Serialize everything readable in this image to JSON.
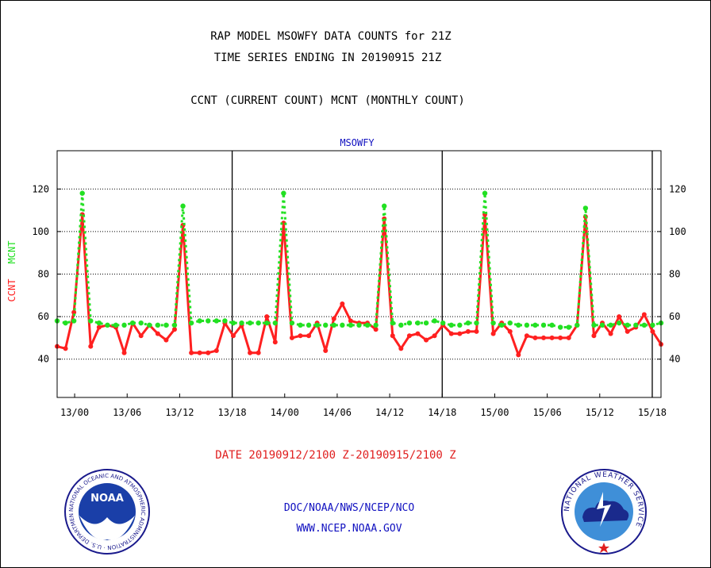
{
  "header": {
    "title_line1": "RAP MODEL MSOWFY DATA COUNTS for 21Z",
    "title_line2": "TIME SERIES ENDING IN 20190915 21Z",
    "subtitle": "CCNT (CURRENT COUNT) MCNT (MONTHLY COUNT)"
  },
  "footer": {
    "date_range": "DATE 20190912/2100 Z-20190915/2100 Z",
    "org": "DOC/NOAA/NWS/NCEP/NCO",
    "url": "WWW.NCEP.NOAA.GOV"
  },
  "logos": {
    "noaa": {
      "text": "NOAA",
      "ring_text": "NATIONAL OCEANIC AND ATMOSPHERIC ADMINISTRATION · U.S. DEPARTMENT OF COMMERCE"
    },
    "nws": {
      "ring_text": "NATIONAL WEATHER SERVICE"
    }
  },
  "colors": {
    "ccnt": "#ff2020",
    "mcnt": "#22e022",
    "panel_title": "#1010c0",
    "date_text": "#e02020",
    "footer_text": "#1010c0"
  },
  "chart_data": {
    "type": "line",
    "title": "MSOWFY",
    "ylabel_ccnt": "CCNT",
    "ylabel_mcnt": "MCNT",
    "x_range_hours": [
      -2,
      67
    ],
    "ylim": [
      22,
      138
    ],
    "y_ticks": [
      40,
      60,
      80,
      100,
      120
    ],
    "x_tick_labels": [
      {
        "hour": 0,
        "label": "13/00"
      },
      {
        "hour": 6,
        "label": "13/06"
      },
      {
        "hour": 12,
        "label": "13/12"
      },
      {
        "hour": 18,
        "label": "13/18"
      },
      {
        "hour": 24,
        "label": "14/00"
      },
      {
        "hour": 30,
        "label": "14/06"
      },
      {
        "hour": 36,
        "label": "14/12"
      },
      {
        "hour": 42,
        "label": "14/18"
      },
      {
        "hour": 48,
        "label": "15/00"
      },
      {
        "hour": 54,
        "label": "15/06"
      },
      {
        "hour": 60,
        "label": "15/12"
      },
      {
        "hour": 66,
        "label": "15/18"
      }
    ],
    "day_boundaries_hours": [
      18,
      42,
      66
    ],
    "grid": "horizontal dotted",
    "series": [
      {
        "name": "CCNT",
        "color": "#ff2020",
        "values": [
          46,
          45,
          62,
          108,
          46,
          55,
          56,
          55,
          43,
          57,
          51,
          56,
          52,
          49,
          54,
          103,
          43,
          43,
          43,
          44,
          57,
          51,
          56,
          43,
          43,
          60,
          48,
          104,
          50,
          51,
          51,
          57,
          44,
          59,
          66,
          58,
          57,
          57,
          54,
          106,
          51,
          45,
          51,
          52,
          49,
          51,
          56,
          52,
          52,
          53,
          53,
          108,
          52,
          57,
          53,
          42,
          51,
          50,
          50,
          50,
          50,
          50,
          56,
          107,
          51,
          57,
          52,
          60,
          53,
          55,
          61,
          53,
          47
        ]
      },
      {
        "name": "MCNT",
        "color": "#22e022",
        "values": [
          58,
          57,
          58,
          118,
          58,
          57,
          56,
          56,
          56,
          57,
          57,
          56,
          56,
          56,
          56,
          112,
          57,
          58,
          58,
          58,
          58,
          57,
          57,
          57,
          57,
          57,
          57,
          118,
          57,
          56,
          56,
          56,
          56,
          56,
          56,
          56,
          56,
          56,
          56,
          112,
          57,
          56,
          57,
          57,
          57,
          58,
          57,
          56,
          56,
          57,
          57,
          118,
          57,
          56,
          57,
          56,
          56,
          56,
          56,
          56,
          55,
          55,
          56,
          111,
          56,
          56,
          56,
          57,
          56,
          56,
          56,
          56,
          57
        ]
      }
    ]
  }
}
